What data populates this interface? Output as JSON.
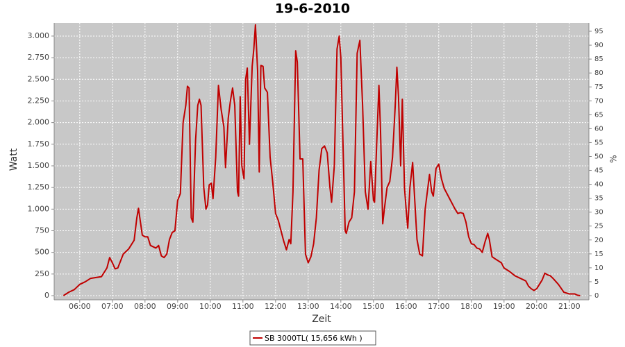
{
  "chart_data": {
    "type": "line",
    "title": "19-6-2010",
    "x_label": "Zeit",
    "y_label": "Watt",
    "y2_label": "%",
    "x": [
      "05:30",
      "05:40",
      "05:50",
      "06:00",
      "06:10",
      "06:20",
      "06:30",
      "06:40",
      "06:50",
      "06:55",
      "07:00",
      "07:05",
      "07:10",
      "07:20",
      "07:30",
      "07:40",
      "07:45",
      "07:48",
      "07:55",
      "08:00",
      "08:05",
      "08:10",
      "08:20",
      "08:25",
      "08:30",
      "08:35",
      "08:40",
      "08:45",
      "08:50",
      "08:55",
      "09:00",
      "09:05",
      "09:10",
      "09:15",
      "09:18",
      "09:21",
      "09:25",
      "09:28",
      "09:33",
      "09:37",
      "09:40",
      "09:43",
      "09:48",
      "09:52",
      "09:55",
      "09:58",
      "10:02",
      "10:05",
      "10:10",
      "10:15",
      "10:20",
      "10:25",
      "10:28",
      "10:33",
      "10:37",
      "10:41",
      "10:45",
      "10:50",
      "10:52",
      "10:55",
      "10:58",
      "11:02",
      "11:05",
      "11:08",
      "11:12",
      "11:17",
      "11:20",
      "11:23",
      "11:27",
      "11:30",
      "11:33",
      "11:37",
      "11:40",
      "11:45",
      "11:50",
      "11:55",
      "12:00",
      "12:05",
      "12:10",
      "12:15",
      "12:20",
      "12:25",
      "12:28",
      "12:32",
      "12:37",
      "12:40",
      "12:45",
      "12:50",
      "12:55",
      "13:00",
      "13:05",
      "13:10",
      "13:15",
      "13:20",
      "13:25",
      "13:30",
      "13:35",
      "13:40",
      "13:43",
      "13:48",
      "13:53",
      "13:57",
      "14:00",
      "14:05",
      "14:08",
      "14:10",
      "14:15",
      "14:20",
      "14:25",
      "14:30",
      "14:35",
      "14:40",
      "14:45",
      "14:50",
      "14:55",
      "15:00",
      "15:02",
      "15:05",
      "15:10",
      "15:13",
      "15:17",
      "15:20",
      "15:25",
      "15:30",
      "15:35",
      "15:40",
      "15:43",
      "15:46",
      "15:50",
      "15:53",
      "15:57",
      "16:00",
      "16:03",
      "16:07",
      "16:12",
      "16:15",
      "16:20",
      "16:25",
      "16:30",
      "16:35",
      "16:40",
      "16:43",
      "16:47",
      "16:50",
      "16:55",
      "17:00",
      "17:05",
      "17:10",
      "17:20",
      "17:30",
      "17:35",
      "17:40",
      "17:45",
      "17:50",
      "17:55",
      "18:00",
      "18:05",
      "18:10",
      "18:15",
      "18:20",
      "18:25",
      "18:30",
      "18:33",
      "18:38",
      "18:45",
      "18:55",
      "19:00",
      "19:10",
      "19:20",
      "19:30",
      "19:40",
      "19:45",
      "19:50",
      "19:55",
      "20:00",
      "20:05",
      "20:10",
      "20:15",
      "20:20",
      "20:25",
      "20:30",
      "20:40",
      "20:50",
      "21:00",
      "21:10",
      "21:15",
      "21:20"
    ],
    "series": [
      {
        "name": "SB 3000TL( 15,656 kWh )",
        "color": "#c00000",
        "values": [
          0,
          40,
          70,
          130,
          160,
          200,
          210,
          220,
          320,
          440,
          380,
          310,
          320,
          480,
          540,
          640,
          900,
          1010,
          700,
          680,
          680,
          580,
          550,
          580,
          460,
          440,
          480,
          650,
          730,
          750,
          1100,
          1180,
          2000,
          2200,
          2420,
          2400,
          900,
          850,
          1800,
          2200,
          2270,
          2200,
          1250,
          1000,
          1050,
          1280,
          1300,
          1120,
          1600,
          2430,
          2150,
          1950,
          1480,
          2050,
          2250,
          2400,
          2200,
          1200,
          1150,
          2300,
          1500,
          1350,
          2500,
          2630,
          1750,
          2650,
          2850,
          3130,
          2600,
          1430,
          2660,
          2650,
          2400,
          2350,
          1600,
          1300,
          950,
          870,
          750,
          630,
          530,
          650,
          600,
          1200,
          2830,
          2700,
          1580,
          1580,
          480,
          380,
          450,
          600,
          900,
          1450,
          1700,
          1730,
          1650,
          1250,
          1080,
          1500,
          2850,
          3000,
          2750,
          1500,
          750,
          720,
          850,
          900,
          1200,
          2800,
          2950,
          2200,
          1200,
          1000,
          1550,
          1100,
          1080,
          1600,
          2430,
          1900,
          830,
          1000,
          1250,
          1320,
          1600,
          2200,
          2640,
          2300,
          1500,
          2270,
          1250,
          1000,
          780,
          1250,
          1540,
          1200,
          650,
          480,
          460,
          1000,
          1250,
          1400,
          1200,
          1150,
          1470,
          1520,
          1350,
          1240,
          1120,
          1000,
          950,
          960,
          950,
          850,
          680,
          600,
          590,
          550,
          540,
          500,
          620,
          720,
          650,
          450,
          420,
          380,
          320,
          280,
          230,
          200,
          170,
          110,
          80,
          60,
          80,
          130,
          180,
          260,
          240,
          230,
          200,
          130,
          40,
          20,
          20,
          5,
          0
        ]
      }
    ],
    "xlim": [
      "05:13",
      "21:36"
    ],
    "xticks": [
      "06:00",
      "07:00",
      "08:00",
      "09:00",
      "10:00",
      "11:00",
      "12:00",
      "13:00",
      "14:00",
      "15:00",
      "16:00",
      "17:00",
      "18:00",
      "19:00",
      "20:00",
      "21:00"
    ],
    "ylim": [
      -48,
      3152
    ],
    "yticks": [
      0,
      250,
      500,
      750,
      {
        "value": 1000,
        "label": "1.000"
      },
      {
        "value": 1250,
        "label": "1.250"
      },
      {
        "value": 1500,
        "label": "1.500"
      },
      {
        "value": 1750,
        "label": "1.750"
      },
      {
        "value": 2000,
        "label": "2.000"
      },
      {
        "value": 2250,
        "label": "2.250"
      },
      {
        "value": 2500,
        "label": "2.500"
      },
      {
        "value": 2750,
        "label": "2.750"
      },
      {
        "value": 3000,
        "label": "3.000"
      }
    ],
    "y2lim": [
      -1.5,
      98
    ],
    "y2ticks": [
      0,
      5,
      10,
      15,
      20,
      25,
      30,
      35,
      40,
      45,
      50,
      55,
      60,
      65,
      70,
      75,
      80,
      85,
      90,
      95
    ],
    "grid": true
  }
}
